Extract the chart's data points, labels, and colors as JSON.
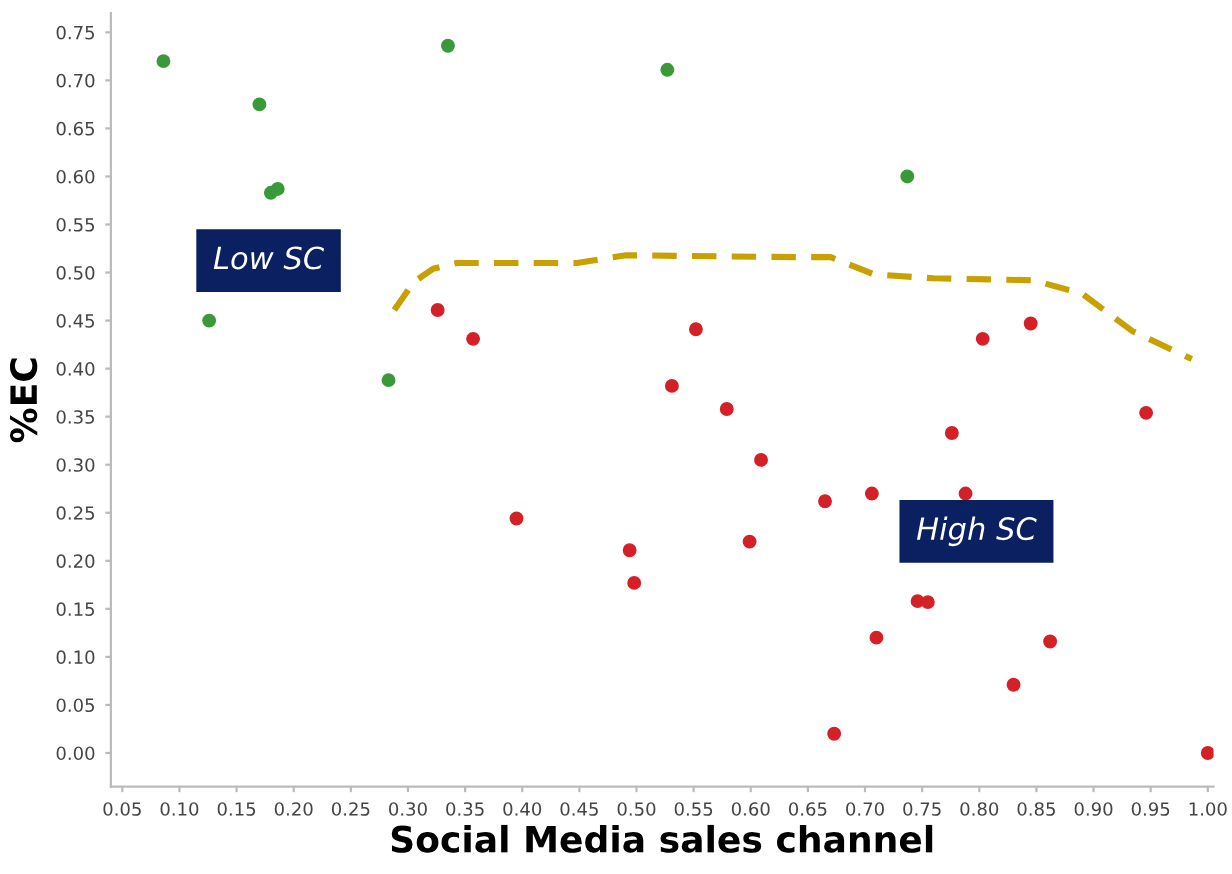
{
  "chart_data": {
    "type": "scatter",
    "xlabel": "Social Media sales channel",
    "ylabel": "%EC",
    "xlim": [
      0.04,
      1.005
    ],
    "ylim": [
      -0.035,
      0.77
    ],
    "xticks": [
      {
        "value": 0.05,
        "label": "0.05"
      },
      {
        "value": 0.1,
        "label": "0.10"
      },
      {
        "value": 0.15,
        "label": "0.15"
      },
      {
        "value": 0.2,
        "label": "0.20"
      },
      {
        "value": 0.25,
        "label": "0.25"
      },
      {
        "value": 0.3,
        "label": "0.30"
      },
      {
        "value": 0.35,
        "label": "0.35"
      },
      {
        "value": 0.4,
        "label": "0.40"
      },
      {
        "value": 0.45,
        "label": "0.45"
      },
      {
        "value": 0.5,
        "label": "0.50"
      },
      {
        "value": 0.55,
        "label": "0.55"
      },
      {
        "value": 0.6,
        "label": "0.60"
      },
      {
        "value": 0.65,
        "label": "0.65"
      },
      {
        "value": 0.7,
        "label": "0.70"
      },
      {
        "value": 0.75,
        "label": "0.75"
      },
      {
        "value": 0.8,
        "label": "0.80"
      },
      {
        "value": 0.85,
        "label": "0.85"
      },
      {
        "value": 0.9,
        "label": "0.90"
      },
      {
        "value": 0.95,
        "label": "0.95"
      },
      {
        "value": 1.0,
        "label": "1.00"
      }
    ],
    "yticks": [
      {
        "value": 0.0,
        "label": "0.00"
      },
      {
        "value": 0.05,
        "label": "0.05"
      },
      {
        "value": 0.1,
        "label": "0.10"
      },
      {
        "value": 0.15,
        "label": "0.15"
      },
      {
        "value": 0.2,
        "label": "0.20"
      },
      {
        "value": 0.25,
        "label": "0.25"
      },
      {
        "value": 0.3,
        "label": "0.30"
      },
      {
        "value": 0.35,
        "label": "0.35"
      },
      {
        "value": 0.4,
        "label": "0.40"
      },
      {
        "value": 0.45,
        "label": "0.45"
      },
      {
        "value": 0.5,
        "label": "0.50"
      },
      {
        "value": 0.55,
        "label": "0.55"
      },
      {
        "value": 0.6,
        "label": "0.60"
      },
      {
        "value": 0.65,
        "label": "0.65"
      },
      {
        "value": 0.7,
        "label": "0.70"
      },
      {
        "value": 0.75,
        "label": "0.75"
      }
    ],
    "grid": false,
    "legend": false,
    "marker": "circle",
    "series": [
      {
        "color": "#3a9a3a",
        "x": [
          0.086,
          0.17,
          0.18,
          0.186,
          0.126,
          0.283,
          0.335,
          0.527,
          0.737
        ],
        "values": [
          0.72,
          0.675,
          0.583,
          0.587,
          0.45,
          0.388,
          0.736,
          0.711,
          0.6
        ]
      },
      {
        "color": "#d42027",
        "x": [
          0.326,
          0.357,
          0.395,
          0.494,
          0.498,
          0.552,
          0.531,
          0.579,
          0.609,
          0.599,
          0.665,
          0.706,
          0.673,
          0.71,
          0.746,
          0.755,
          0.776,
          0.788,
          0.803,
          0.845,
          0.83,
          0.862,
          0.946,
          1.0
        ],
        "values": [
          0.461,
          0.431,
          0.244,
          0.211,
          0.177,
          0.441,
          0.382,
          0.358,
          0.305,
          0.22,
          0.262,
          0.27,
          0.02,
          0.12,
          0.158,
          0.157,
          0.333,
          0.27,
          0.431,
          0.447,
          0.071,
          0.116,
          0.354,
          0.0
        ]
      },
      {
        "type": "line",
        "color": "#c8a000",
        "line_style": "dashed",
        "marker": "none",
        "x": [
          0.288,
          0.305,
          0.322,
          0.343,
          0.448,
          0.491,
          0.639,
          0.67,
          0.708,
          0.76,
          0.847,
          0.89,
          0.934,
          0.986
        ],
        "values": [
          0.461,
          0.49,
          0.504,
          0.51,
          0.51,
          0.518,
          0.516,
          0.516,
          0.498,
          0.494,
          0.492,
          0.478,
          0.439,
          0.41
        ]
      }
    ],
    "annotations": [
      "Low SC",
      "High SC"
    ]
  }
}
